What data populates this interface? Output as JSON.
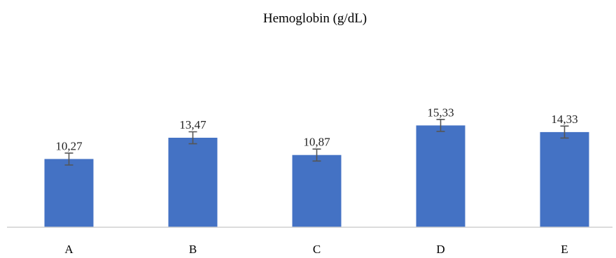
{
  "chart_data": {
    "type": "bar",
    "title": "Hemoglobin (g/dL)",
    "xlabel": "",
    "ylabel": "",
    "categories": [
      "A",
      "B",
      "C",
      "D",
      "E"
    ],
    "values": [
      10.27,
      13.47,
      10.87,
      15.33,
      14.33
    ],
    "value_labels": [
      "10,27",
      "13,47",
      "10,87",
      "15,33",
      "14,33"
    ],
    "error": [
      0.9,
      0.9,
      0.9,
      0.9,
      0.9
    ],
    "ylim": [
      0,
      17
    ],
    "grid": false,
    "legend": "none",
    "bar_color": "#4472C4",
    "error_color": "#555555"
  }
}
